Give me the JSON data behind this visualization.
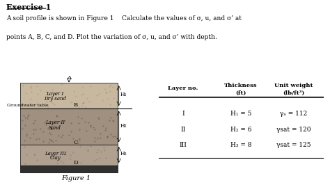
{
  "title": "Exercise 1",
  "paragraph": "A soil profile is shown in Figure 1    Calculate the values of σ, u, and σ’ at\npoints A, B, C, and D. Plot the variation of σ, u, and σ’ with depth.",
  "figure_caption": "Figure 1",
  "layer_labels": [
    "Layer I\nDry sand",
    "Layer II\nSand",
    "Layer III\nClay"
  ],
  "groundwater_label": "Groundwater table",
  "point_labels": [
    "A",
    "B",
    "C",
    "D"
  ],
  "layer_colors": [
    "#b8a898",
    "#7a6a5a",
    "#9a8878",
    "#3a3030"
  ],
  "table_headers": [
    "Layer no.",
    "Thickness\n(ft)",
    "Unit weight\n(lb/ft³)"
  ],
  "table_rows": [
    [
      "I",
      "H₁ = 5",
      "γₐ = 112"
    ],
    [
      "II",
      "H₂ = 6",
      "γsat = 120"
    ],
    [
      "III",
      "H₃ = 8",
      "γsat = 125"
    ]
  ],
  "bg_color": "#f5f5f0"
}
